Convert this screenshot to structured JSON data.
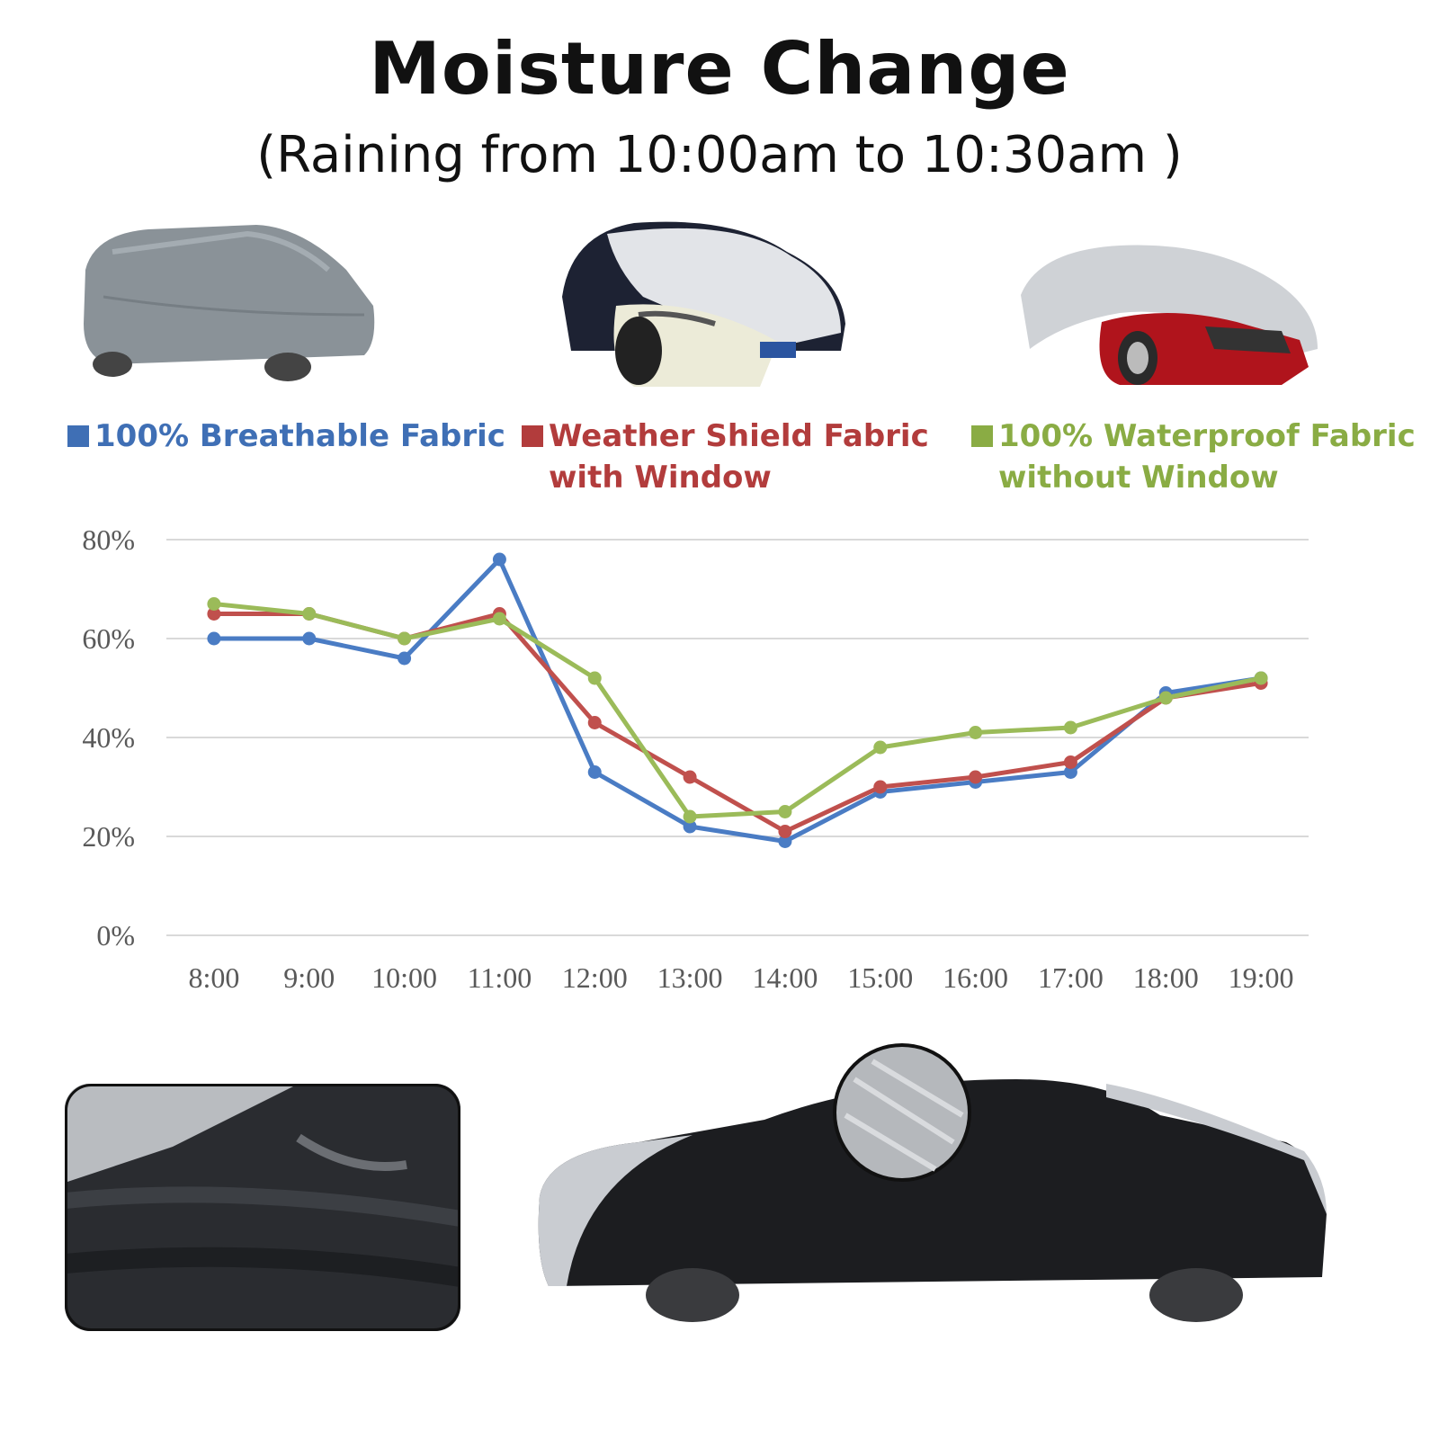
{
  "header": {
    "title": "Moisture Change",
    "subtitle": "(Raining from 10:00am to 10:30am )"
  },
  "legend": [
    {
      "line1": "100% Breathable Fabric",
      "line2": "",
      "color": "#3f6fb5"
    },
    {
      "line1": "Weather Shield Fabric",
      "line2": "with Window",
      "color": "#b23c3c"
    },
    {
      "line1": "100% Waterproof Fabric",
      "line2": "without Window",
      "color": "#8aac44"
    }
  ],
  "chart_data": {
    "type": "line",
    "categories": [
      "8:00",
      "9:00",
      "10:00",
      "11:00",
      "12:00",
      "13:00",
      "14:00",
      "15:00",
      "16:00",
      "17:00",
      "18:00",
      "19:00"
    ],
    "ylim": [
      0,
      80
    ],
    "yticks": [
      "0%",
      "20%",
      "40%",
      "60%",
      "80%"
    ],
    "ytick_values": [
      0,
      20,
      40,
      60,
      80
    ],
    "grid": true,
    "legend_position": "top",
    "series": [
      {
        "name": "100% Breathable Fabric",
        "color": "#4a7cc4",
        "values": [
          60,
          60,
          56,
          76,
          33,
          22,
          19,
          29,
          31,
          33,
          49,
          52
        ]
      },
      {
        "name": "Weather Shield Fabric with Window",
        "color": "#c0504d",
        "values": [
          65,
          65,
          60,
          65,
          43,
          32,
          21,
          30,
          32,
          35,
          48,
          51
        ]
      },
      {
        "name": "100% Waterproof Fabric without Window",
        "color": "#9bbb59",
        "values": [
          67,
          65,
          60,
          64,
          52,
          24,
          25,
          38,
          41,
          42,
          48,
          52
        ]
      }
    ]
  }
}
